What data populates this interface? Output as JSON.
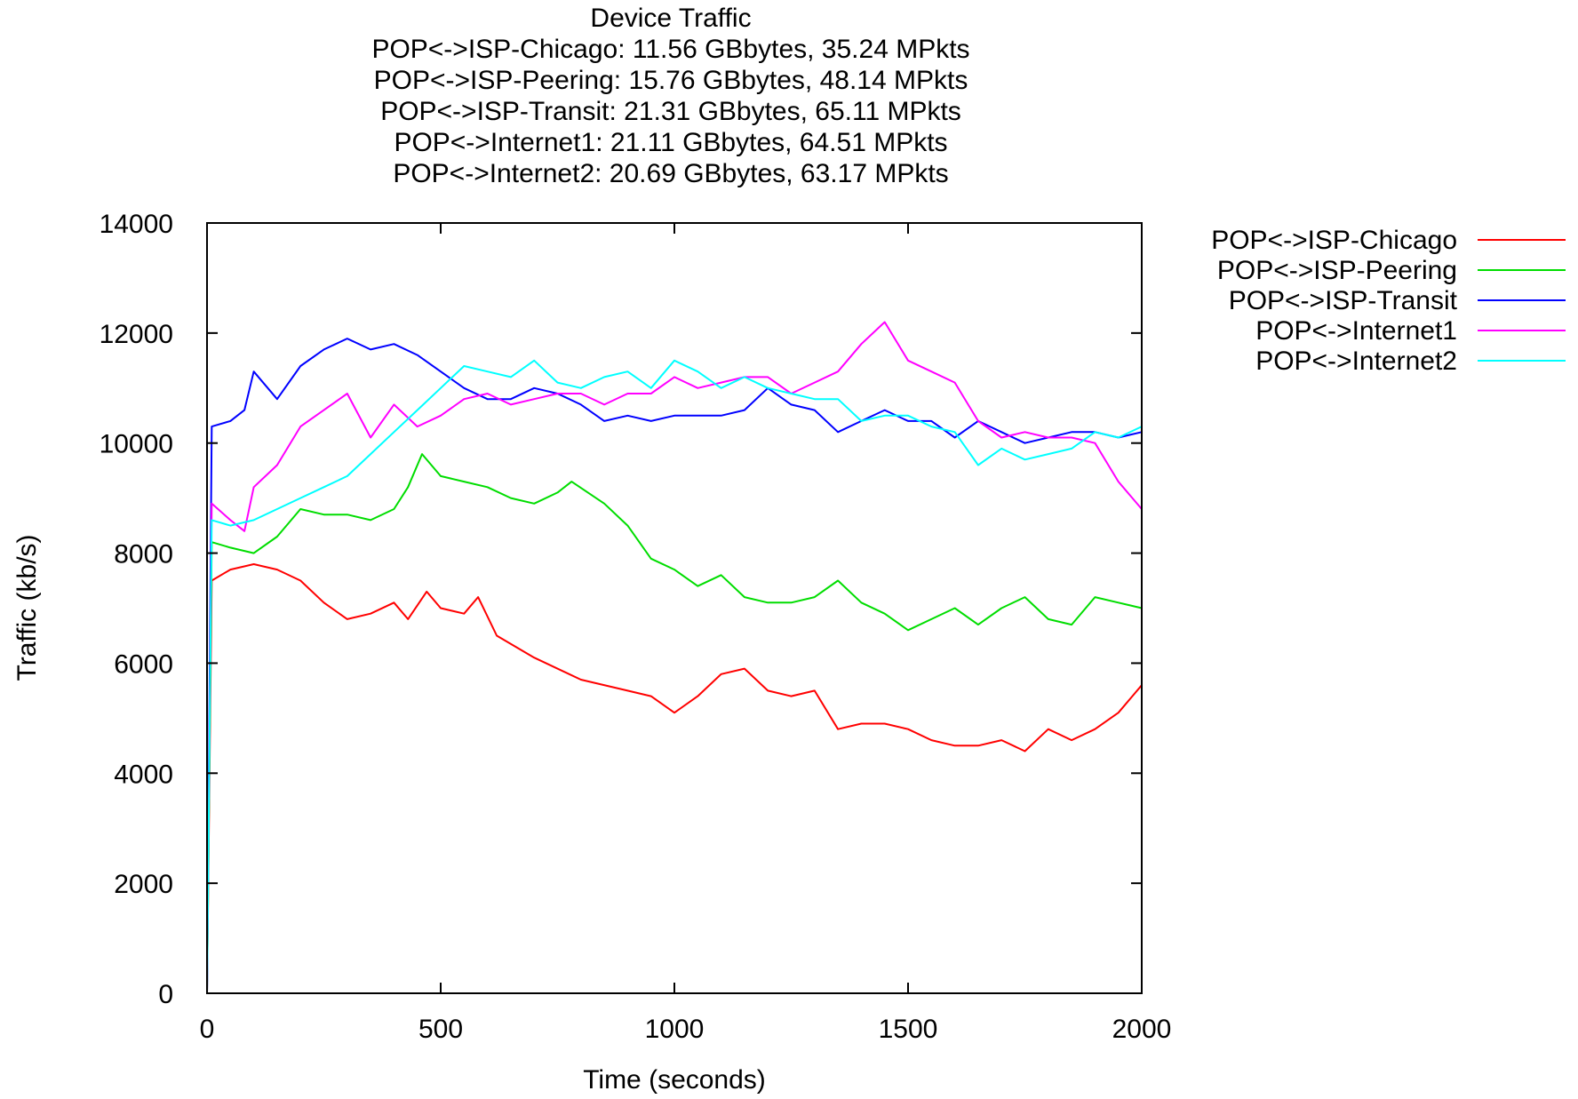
{
  "chart_data": {
    "type": "line",
    "title": "Device Traffic",
    "subtitle_lines": [
      "POP<->ISP-Chicago: 11.56 GBbytes, 35.24 MPkts",
      "POP<->ISP-Peering: 15.76 GBbytes, 48.14 MPkts",
      "POP<->ISP-Transit: 21.31 GBbytes, 65.11 MPkts",
      "POP<->Internet1: 21.11 GBbytes, 64.51 MPkts",
      "POP<->Internet2: 20.69 GBbytes, 63.17 MPkts"
    ],
    "xlabel": "Time (seconds)",
    "ylabel": "Traffic (kb/s)",
    "xlim": [
      0,
      2000
    ],
    "ylim": [
      0,
      14000
    ],
    "xticks": [
      0,
      500,
      1000,
      1500,
      2000
    ],
    "yticks": [
      0,
      2000,
      4000,
      6000,
      8000,
      10000,
      12000,
      14000
    ],
    "grid": false,
    "legend_position": "outside-top-right",
    "series": [
      {
        "name": "POP<->ISP-Chicago",
        "color": "#ff0000",
        "x": [
          0,
          10,
          50,
          100,
          150,
          200,
          250,
          300,
          350,
          400,
          430,
          470,
          500,
          550,
          580,
          620,
          700,
          800,
          900,
          950,
          1000,
          1050,
          1100,
          1150,
          1200,
          1250,
          1300,
          1350,
          1400,
          1450,
          1500,
          1550,
          1600,
          1650,
          1700,
          1750,
          1800,
          1850,
          1900,
          1950,
          2000
        ],
        "values": [
          0,
          7500,
          7700,
          7800,
          7700,
          7500,
          7100,
          6800,
          6900,
          7100,
          6800,
          7300,
          7000,
          6900,
          7200,
          6500,
          6100,
          5700,
          5500,
          5400,
          5100,
          5400,
          5800,
          5900,
          5500,
          5400,
          5500,
          4800,
          4900,
          4900,
          4800,
          4600,
          4500,
          4500,
          4600,
          4400,
          4800,
          4600,
          4800,
          5100,
          5600
        ]
      },
      {
        "name": "POP<->ISP-Peering",
        "color": "#00dd00",
        "x": [
          0,
          10,
          50,
          100,
          150,
          200,
          250,
          300,
          350,
          400,
          430,
          460,
          500,
          550,
          600,
          650,
          700,
          750,
          780,
          850,
          900,
          950,
          1000,
          1050,
          1100,
          1150,
          1200,
          1250,
          1300,
          1350,
          1400,
          1450,
          1500,
          1550,
          1600,
          1650,
          1700,
          1750,
          1800,
          1850,
          1900,
          1950,
          2000
        ],
        "values": [
          0,
          8200,
          8100,
          8000,
          8300,
          8800,
          8700,
          8700,
          8600,
          8800,
          9200,
          9800,
          9400,
          9300,
          9200,
          9000,
          8900,
          9100,
          9300,
          8900,
          8500,
          7900,
          7700,
          7400,
          7600,
          7200,
          7100,
          7100,
          7200,
          7500,
          7100,
          6900,
          6600,
          6800,
          7000,
          6700,
          7000,
          7200,
          6800,
          6700,
          7200,
          7100,
          7000
        ]
      },
      {
        "name": "POP<->ISP-Transit",
        "color": "#0000ff",
        "x": [
          0,
          10,
          50,
          80,
          100,
          150,
          200,
          250,
          300,
          350,
          400,
          450,
          500,
          550,
          600,
          650,
          700,
          750,
          800,
          850,
          900,
          950,
          1000,
          1050,
          1100,
          1150,
          1200,
          1250,
          1300,
          1350,
          1400,
          1450,
          1500,
          1550,
          1600,
          1650,
          1700,
          1750,
          1800,
          1850,
          1900,
          1950,
          2000
        ],
        "values": [
          0,
          10300,
          10400,
          10600,
          11300,
          10800,
          11400,
          11700,
          11900,
          11700,
          11800,
          11600,
          11300,
          11000,
          10800,
          10800,
          11000,
          10900,
          10700,
          10400,
          10500,
          10400,
          10500,
          10500,
          10500,
          10600,
          11000,
          10700,
          10600,
          10200,
          10400,
          10600,
          10400,
          10400,
          10100,
          10400,
          10200,
          10000,
          10100,
          10200,
          10200,
          10100,
          10200
        ]
      },
      {
        "name": "POP<->Internet1",
        "color": "#ff00ff",
        "x": [
          0,
          10,
          50,
          80,
          100,
          150,
          200,
          250,
          300,
          350,
          400,
          450,
          500,
          550,
          600,
          650,
          700,
          750,
          800,
          850,
          900,
          950,
          1000,
          1050,
          1100,
          1150,
          1200,
          1250,
          1300,
          1350,
          1400,
          1450,
          1500,
          1550,
          1600,
          1650,
          1700,
          1750,
          1800,
          1850,
          1900,
          1950,
          2000
        ],
        "values": [
          0,
          8900,
          8600,
          8400,
          9200,
          9600,
          10300,
          10600,
          10900,
          10100,
          10700,
          10300,
          10500,
          10800,
          10900,
          10700,
          10800,
          10900,
          10900,
          10700,
          10900,
          10900,
          11200,
          11000,
          11100,
          11200,
          11200,
          10900,
          11100,
          11300,
          11800,
          12200,
          11500,
          11300,
          11100,
          10400,
          10100,
          10200,
          10100,
          10100,
          10000,
          9300,
          8800
        ]
      },
      {
        "name": "POP<->Internet2",
        "color": "#00ffff",
        "x": [
          0,
          10,
          50,
          100,
          150,
          200,
          250,
          300,
          350,
          400,
          450,
          500,
          550,
          600,
          650,
          700,
          750,
          800,
          850,
          900,
          950,
          1000,
          1050,
          1100,
          1150,
          1200,
          1250,
          1300,
          1350,
          1400,
          1450,
          1500,
          1550,
          1600,
          1650,
          1700,
          1750,
          1800,
          1850,
          1900,
          1950,
          2000
        ],
        "values": [
          0,
          8600,
          8500,
          8600,
          8800,
          9000,
          9200,
          9400,
          9800,
          10200,
          10600,
          11000,
          11400,
          11300,
          11200,
          11500,
          11100,
          11000,
          11200,
          11300,
          11000,
          11500,
          11300,
          11000,
          11200,
          11000,
          10900,
          10800,
          10800,
          10400,
          10500,
          10500,
          10300,
          10200,
          9600,
          9900,
          9700,
          9800,
          9900,
          10200,
          10100,
          10300
        ]
      }
    ]
  }
}
